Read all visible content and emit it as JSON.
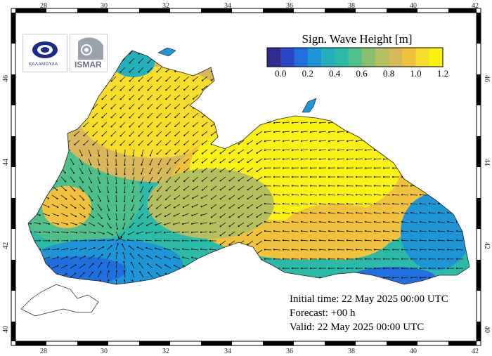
{
  "legend": {
    "title": "Sign. Wave Height [m]",
    "colorbar_colors": [
      "#2e2b8c",
      "#2a46c8",
      "#1f6fe0",
      "#1d95d6",
      "#24b0bd",
      "#2bbba8",
      "#50c08a",
      "#86c06c",
      "#b4c060",
      "#d8b85a",
      "#f2c23c",
      "#f8de2a",
      "#fbf114"
    ],
    "colorbar_labels": [
      "0.0",
      "0.2",
      "0.4",
      "0.6",
      "0.8",
      "1.0",
      "1.2"
    ]
  },
  "axes": {
    "x_ticks": [
      "28",
      "30",
      "32",
      "34",
      "36",
      "38",
      "40",
      "42"
    ],
    "y_ticks": [
      "40",
      "42",
      "44",
      "46"
    ]
  },
  "info": {
    "initial_time": "Initial time: 22 May 2025 00:00 UTC",
    "forecast": "Forecast: +00 h",
    "valid": "Valid: 22 May 2025 00:00 UTC"
  },
  "logos": {
    "left_logo_text": "ΚΑΛΑΜΟΥΛΑ",
    "right_logo_text": "ISMAR"
  },
  "colors": {
    "land": "#ffffff",
    "frame": "#000000",
    "sea_low": "#1e78d8",
    "sea_high": "#fbf114"
  }
}
